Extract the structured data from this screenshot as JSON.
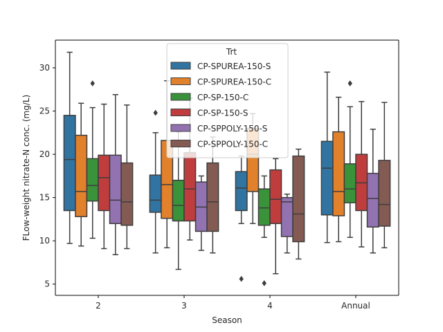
{
  "chart_data": {
    "type": "box",
    "xlabel": "Season",
    "ylabel": "FLow-weight nitrate-N conc. (mg/L)",
    "ylim": [
      3.7,
      33.2
    ],
    "yticks": [
      5,
      10,
      15,
      20,
      25,
      30
    ],
    "categories": [
      "2",
      "3",
      "4",
      "Annual"
    ],
    "legend": {
      "title": "Trt",
      "placement": "top-center"
    },
    "grid": false,
    "series": [
      {
        "name": "CP-SPUREA-150-S",
        "color": "#3274a1",
        "boxes": [
          {
            "whislo": 9.7,
            "q1": 13.5,
            "med": 19.4,
            "q3": 24.5,
            "whishi": 31.8,
            "fliers": []
          },
          {
            "whislo": 8.6,
            "q1": 13.3,
            "med": 14.7,
            "q3": 17.6,
            "whishi": 22.5,
            "fliers": [
              24.8
            ]
          },
          {
            "whislo": 12.0,
            "q1": 13.5,
            "med": 16.1,
            "q3": 18.0,
            "whishi": 19.8,
            "fliers": [
              5.6
            ]
          },
          {
            "whislo": 9.8,
            "q1": 13.0,
            "med": 18.4,
            "q3": 21.5,
            "whishi": 29.5,
            "fliers": []
          }
        ]
      },
      {
        "name": "CP-SPUREA-150-C",
        "color": "#e1812c",
        "boxes": [
          {
            "whislo": 9.4,
            "q1": 12.8,
            "med": 15.7,
            "q3": 22.2,
            "whishi": 25.9,
            "fliers": []
          },
          {
            "whislo": 9.2,
            "q1": 12.6,
            "med": 16.5,
            "q3": 21.6,
            "whishi": 28.5,
            "fliers": []
          },
          {
            "whislo": 12.0,
            "q1": 15.7,
            "med": 20.0,
            "q3": 23.0,
            "whishi": 24.7,
            "fliers": []
          },
          {
            "whislo": 9.9,
            "q1": 12.9,
            "med": 15.7,
            "q3": 22.6,
            "whishi": 26.6,
            "fliers": []
          }
        ]
      },
      {
        "name": "CP-SP-150-C",
        "color": "#3a923a",
        "boxes": [
          {
            "whislo": 10.3,
            "q1": 14.6,
            "med": 16.4,
            "q3": 19.5,
            "whishi": 25.4,
            "fliers": [
              28.2
            ]
          },
          {
            "whislo": 6.7,
            "q1": 12.3,
            "med": 14.1,
            "q3": 17.0,
            "whishi": 22.6,
            "fliers": []
          },
          {
            "whislo": 10.4,
            "q1": 11.8,
            "med": 13.8,
            "q3": 16.0,
            "whishi": 17.5,
            "fliers": [
              5.1
            ]
          },
          {
            "whislo": 10.4,
            "q1": 14.4,
            "med": 16.0,
            "q3": 18.9,
            "whishi": 25.5,
            "fliers": [
              28.2
            ]
          }
        ]
      },
      {
        "name": "CP-SP-150-S",
        "color": "#c03d3e",
        "boxes": [
          {
            "whislo": 9.1,
            "q1": 13.5,
            "med": 17.3,
            "q3": 19.9,
            "whishi": 25.8,
            "fliers": []
          },
          {
            "whislo": 10.1,
            "q1": 12.3,
            "med": 16.0,
            "q3": 20.2,
            "whishi": 26.5,
            "fliers": []
          },
          {
            "whislo": 6.2,
            "q1": 12.0,
            "med": 14.8,
            "q3": 18.2,
            "whishi": 19.5,
            "fliers": []
          },
          {
            "whislo": 9.3,
            "q1": 13.5,
            "med": 16.7,
            "q3": 20.0,
            "whishi": 26.1,
            "fliers": []
          }
        ]
      },
      {
        "name": "CP-SPPOLY-150-S",
        "color": "#9372b2",
        "boxes": [
          {
            "whislo": 8.4,
            "q1": 12.0,
            "med": 14.7,
            "q3": 19.9,
            "whishi": 26.9,
            "fliers": []
          },
          {
            "whislo": 8.9,
            "q1": 11.1,
            "med": 13.9,
            "q3": 16.8,
            "whishi": 17.5,
            "fliers": []
          },
          {
            "whislo": 8.6,
            "q1": 10.5,
            "med": 14.5,
            "q3": 15.0,
            "whishi": 15.4,
            "fliers": []
          },
          {
            "whislo": 8.6,
            "q1": 11.6,
            "med": 14.9,
            "q3": 17.8,
            "whishi": 22.9,
            "fliers": []
          }
        ]
      },
      {
        "name": "CP-SPPOLY-150-C",
        "color": "#845b53",
        "boxes": [
          {
            "whislo": 9.1,
            "q1": 11.8,
            "med": 14.5,
            "q3": 19.0,
            "whishi": 25.7,
            "fliers": []
          },
          {
            "whislo": 8.6,
            "q1": 11.1,
            "med": 14.5,
            "q3": 19.0,
            "whishi": 22.0,
            "fliers": []
          },
          {
            "whislo": 7.9,
            "q1": 9.9,
            "med": 13.1,
            "q3": 19.8,
            "whishi": 20.6,
            "fliers": []
          },
          {
            "whislo": 9.2,
            "q1": 11.7,
            "med": 14.2,
            "q3": 19.3,
            "whishi": 26.0,
            "fliers": []
          }
        ]
      }
    ]
  }
}
